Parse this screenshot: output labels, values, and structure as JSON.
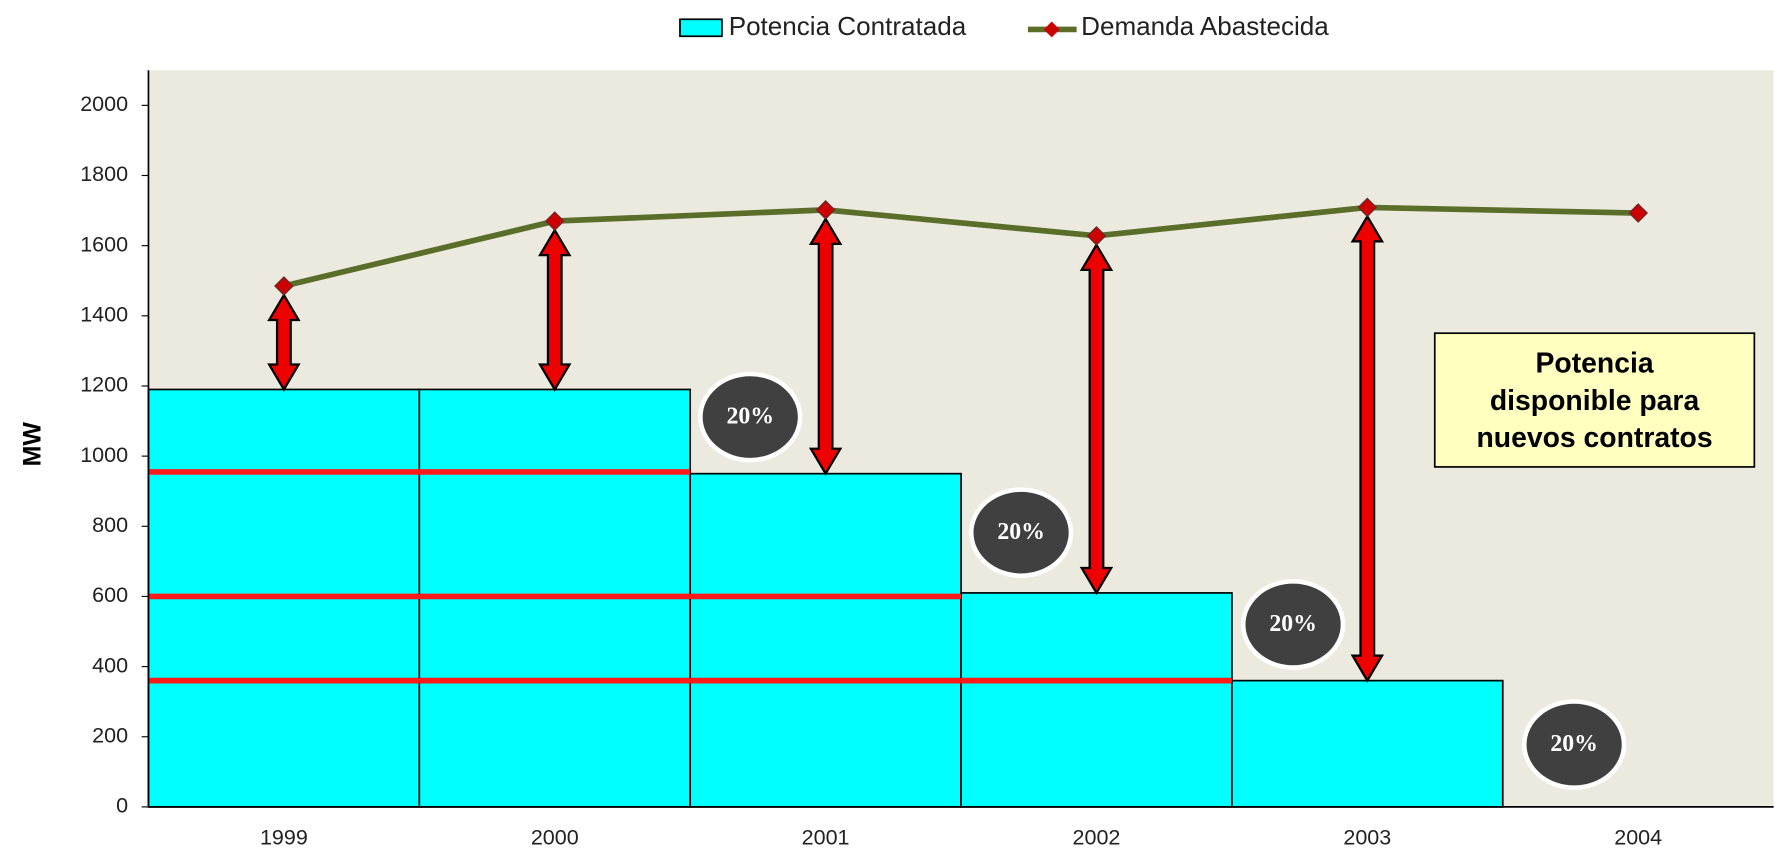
{
  "chart_data": {
    "type": "bar-line",
    "y_label": "MW",
    "categories": [
      "1999",
      "2000",
      "2001",
      "2002",
      "2003",
      "2004"
    ],
    "series": [
      {
        "name": "Potencia Contratada",
        "type": "bar",
        "color": "#00ffff",
        "values": [
          1190,
          1190,
          950,
          610,
          360,
          null
        ]
      },
      {
        "name": "Demanda Abastecida",
        "type": "line",
        "color": "#5a6e2a",
        "marker_color": "#cc0000",
        "values": [
          1485,
          1670,
          1702,
          1628,
          1709,
          1693
        ]
      }
    ],
    "reference_lines": [
      {
        "value": 955,
        "through": "2000"
      },
      {
        "value": 600,
        "through": "2001"
      },
      {
        "value": 360,
        "through": "2002"
      }
    ],
    "annotations": [
      "20%",
      "20%",
      "20%",
      "20%"
    ],
    "note_box": [
      "Potencia",
      "disponible para",
      "nuevos contratos"
    ],
    "ylim": [
      0,
      2100
    ],
    "yticks": [
      0,
      200,
      400,
      600,
      800,
      1000,
      1200,
      1400,
      1600,
      1800,
      2000
    ],
    "legend": "top"
  }
}
